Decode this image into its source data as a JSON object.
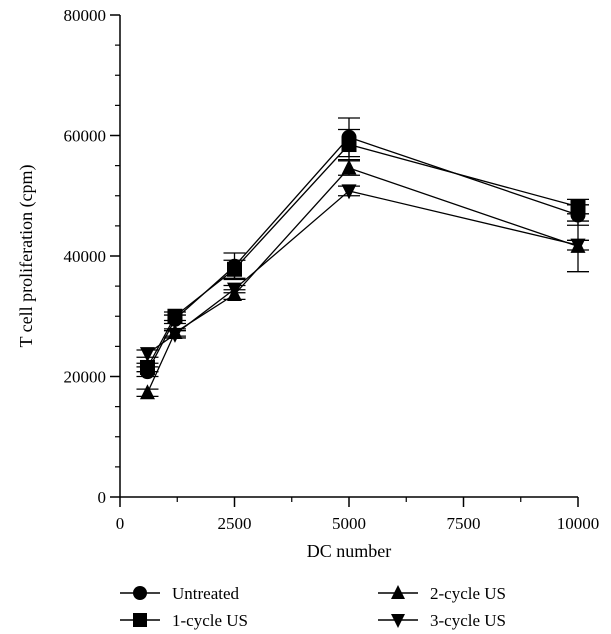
{
  "chart_data": {
    "type": "line",
    "xlabel": "DC number",
    "ylabel": "T cell proliferation (cpm)",
    "xlim": [
      0,
      10000
    ],
    "ylim": [
      0,
      80000
    ],
    "x_ticks": [
      0,
      2500,
      5000,
      7500,
      10000
    ],
    "x_tick_labels": [
      "0",
      "2500",
      "5000",
      "7500",
      "10000"
    ],
    "y_ticks": [
      0,
      20000,
      40000,
      60000,
      80000
    ],
    "y_tick_labels": [
      "0",
      "20000",
      "40000",
      "60000",
      "80000"
    ],
    "y_minor_step": 5000,
    "x_minor_step": 1250,
    "grid": false,
    "legend_position": "bottom",
    "x": [
      600,
      1200,
      2500,
      5000,
      10000
    ],
    "series": [
      {
        "name": "Untreated",
        "marker": "circle",
        "values": [
          20800,
          29500,
          38300,
          59700,
          46800
        ],
        "errors": [
          800,
          700,
          2200,
          3200,
          1700
        ]
      },
      {
        "name": "1-cycle US",
        "marker": "square",
        "values": [
          21500,
          30000,
          37800,
          58500,
          48200
        ],
        "errors": [
          700,
          700,
          1500,
          2500,
          1200
        ]
      },
      {
        "name": "2-cycle US",
        "marker": "triangle-up",
        "values": [
          17300,
          27300,
          33600,
          54600,
          41600
        ],
        "errors": [
          600,
          600,
          800,
          1200,
          4200
        ]
      },
      {
        "name": "3-cycle US",
        "marker": "triangle-down",
        "values": [
          23800,
          27000,
          34500,
          50800,
          41800
        ],
        "errors": [
          600,
          600,
          600,
          800,
          800
        ]
      }
    ]
  }
}
